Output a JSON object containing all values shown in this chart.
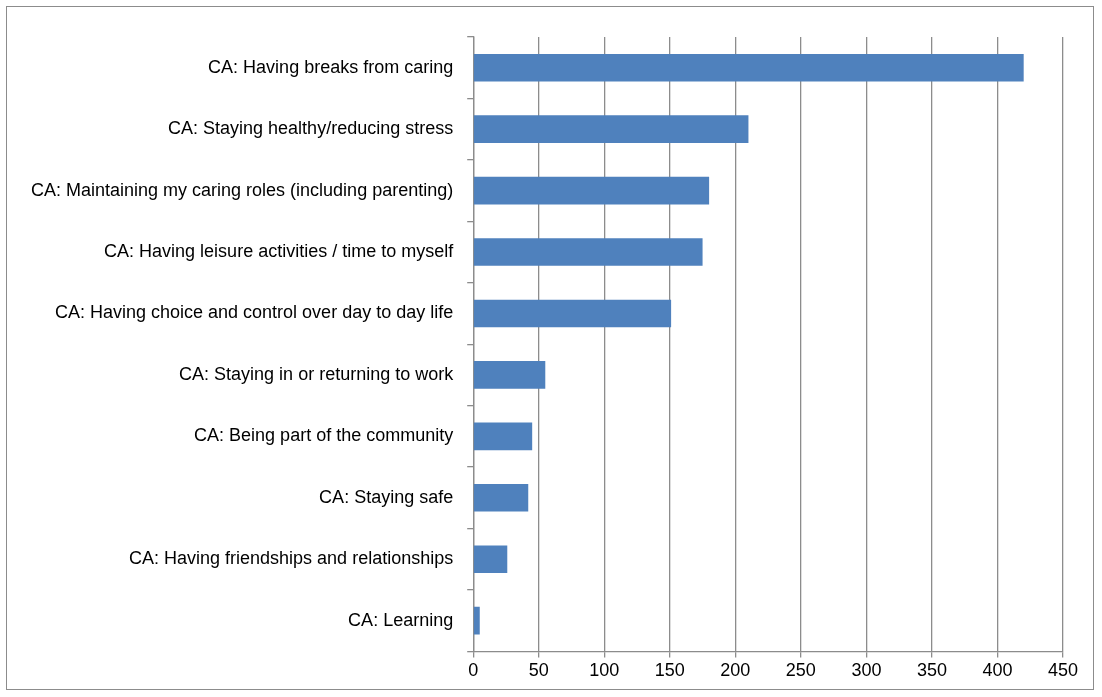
{
  "chart_data": {
    "type": "bar",
    "orientation": "horizontal",
    "categories": [
      "CA: Having breaks from caring",
      "CA: Staying healthy/reducing stress",
      "CA: Maintaining my caring roles (including parenting)",
      "CA: Having leisure activities / time to myself",
      "CA: Having choice and control over day to day life",
      "CA: Staying in or returning to work",
      "CA: Being part of the community",
      "CA: Staying safe",
      "CA: Having friendships and relationships",
      "CA: Learning"
    ],
    "values": [
      420,
      210,
      180,
      175,
      151,
      55,
      45,
      42,
      26,
      5
    ],
    "color": "#4f81bd",
    "xlim": [
      0,
      450
    ],
    "xticks": [
      0,
      50,
      100,
      150,
      200,
      250,
      300,
      350,
      400,
      450
    ],
    "grid": "x",
    "legend": false
  }
}
